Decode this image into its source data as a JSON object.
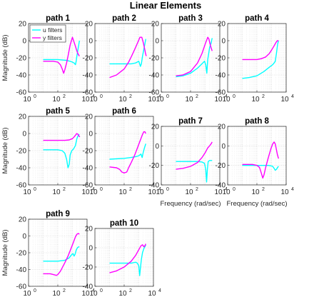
{
  "figure_title": "Linear Elements",
  "colors": {
    "u": "#00ffff",
    "y": "#ff00ff"
  },
  "legend": [
    "u filters",
    "y filters"
  ],
  "ytick_labels": [
    "20",
    "0",
    "-20",
    "-40",
    "-60"
  ],
  "ytick_labels_short": [
    "20",
    "0",
    "-20",
    "-40"
  ],
  "xtick_labels": [
    {
      "base": "10",
      "exp": "0"
    },
    {
      "base": "10",
      "exp": "2"
    },
    {
      "base": "10",
      "exp": "4"
    }
  ],
  "ylabel": "Magnitude (dB)",
  "xlabel": "Frequency (rad/sec)",
  "chart_data": [
    {
      "type": "line",
      "title": "path 1",
      "xscale": "log",
      "xlim": [
        1,
        10000
      ],
      "ylim": [
        -60,
        20
      ],
      "legend": "top-left",
      "series": [
        {
          "name": "u filters",
          "x": [
            10,
            50,
            100,
            200,
            400,
            700,
            1000,
            1300,
            1600,
            1800,
            2000,
            2500,
            3000
          ],
          "y": [
            -22,
            -22,
            -22,
            -22.5,
            -23,
            -24,
            -25,
            -26,
            -28,
            -24,
            -18,
            -8,
            0
          ]
        },
        {
          "name": "y filters",
          "x": [
            10,
            50,
            100,
            150,
            200,
            250,
            300,
            400,
            500,
            700,
            1000,
            1200,
            1500,
            2000,
            2500,
            3000
          ],
          "y": [
            -24,
            -24,
            -25,
            -28,
            -33,
            -38,
            -34,
            -26,
            -18,
            -5,
            4,
            0,
            -5,
            -12,
            -16,
            -18
          ]
        }
      ]
    },
    {
      "type": "line",
      "title": "path 2",
      "xscale": "log",
      "xlim": [
        1,
        10000
      ],
      "ylim": [
        -60,
        20
      ],
      "series": [
        {
          "name": "u filters",
          "x": [
            10,
            100,
            300,
            600,
            1000,
            1300,
            1500,
            1800,
            2500,
            3000
          ],
          "y": [
            -27,
            -27,
            -27,
            -26,
            -24,
            -30,
            -27,
            -18,
            -5,
            2
          ]
        },
        {
          "name": "y filters",
          "x": [
            10,
            30,
            100,
            200,
            300,
            500,
            800,
            1200,
            1600,
            2000,
            2400,
            2800,
            3200
          ],
          "y": [
            -43,
            -40,
            -33,
            -25,
            -19,
            -11,
            -3,
            4,
            4,
            -2,
            -8,
            -14,
            -18
          ]
        }
      ]
    },
    {
      "type": "line",
      "title": "path 3",
      "xscale": "log",
      "xlim": [
        1,
        10000
      ],
      "ylim": [
        -60,
        20
      ],
      "series": [
        {
          "name": "u filters",
          "x": [
            10,
            30,
            100,
            300,
            600,
            900,
            1100,
            1300,
            1500,
            2000,
            2500,
            3000
          ],
          "y": [
            -42,
            -41,
            -38,
            -32,
            -27,
            -24,
            -28,
            -38,
            -22,
            -8,
            -3,
            3
          ]
        },
        {
          "name": "y filters",
          "x": [
            10,
            30,
            100,
            300,
            600,
            1000,
            1500,
            1800,
            2100,
            2500,
            3000
          ],
          "y": [
            -41,
            -40,
            -36,
            -26,
            -15,
            -4,
            4,
            2,
            -3,
            -8,
            -12
          ]
        }
      ]
    },
    {
      "type": "line",
      "title": "path 4",
      "xscale": "log",
      "xlim": [
        1,
        10000
      ],
      "ylim": [
        -60,
        20
      ],
      "series": [
        {
          "name": "u filters",
          "x": [
            10,
            30,
            100,
            300,
            700,
            1200,
            1500,
            1800,
            2200,
            2600,
            3000
          ],
          "y": [
            -44,
            -43,
            -41,
            -36,
            -31,
            -28,
            -26,
            -24,
            -14,
            -4,
            0
          ]
        },
        {
          "name": "y filters",
          "x": [
            10,
            50,
            100,
            200,
            400,
            700,
            1000,
            1500,
            2000,
            2500,
            3000
          ],
          "y": [
            -22,
            -22,
            -22,
            -21,
            -19,
            -15,
            -11,
            -6,
            -2,
            0,
            0
          ]
        }
      ]
    },
    {
      "type": "line",
      "title": "path 5",
      "xscale": "log",
      "xlim": [
        1,
        10000
      ],
      "ylim": [
        -60,
        20
      ],
      "series": [
        {
          "name": "u filters",
          "x": [
            10,
            100,
            200,
            300,
            400,
            500,
            600,
            700,
            900,
            1200,
            1600,
            2000,
            2500,
            3000
          ],
          "y": [
            -19,
            -19,
            -20,
            -23,
            -30,
            -40,
            -36,
            -25,
            -20,
            -18,
            -14,
            -6,
            -2,
            -1
          ]
        },
        {
          "name": "y filters",
          "x": [
            10,
            100,
            300,
            600,
            1000,
            1300,
            1600,
            2000,
            2400,
            2800,
            3200
          ],
          "y": [
            -8,
            -8,
            -8,
            -7.5,
            -6,
            -4,
            -2,
            0,
            -1,
            -3,
            -4
          ]
        }
      ]
    },
    {
      "type": "line",
      "title": "path 6",
      "xscale": "log",
      "xlim": [
        1,
        10000
      ],
      "ylim": [
        -60,
        20
      ],
      "series": [
        {
          "name": "u filters",
          "x": [
            10,
            100,
            300,
            600,
            1000,
            1400,
            1700,
            2000,
            2500,
            3000
          ],
          "y": [
            -30,
            -29,
            -28,
            -27,
            -26,
            -24,
            -28,
            -22,
            -16,
            -12
          ]
        },
        {
          "name": "y filters",
          "x": [
            10,
            30,
            50,
            70,
            100,
            150,
            200,
            300,
            500,
            800,
            1200,
            1800,
            2200,
            2600,
            3000
          ],
          "y": [
            -39,
            -40,
            -42,
            -45,
            -46,
            -45,
            -40,
            -34,
            -26,
            -17,
            -9,
            -1,
            2,
            2,
            0
          ]
        }
      ]
    },
    {
      "type": "line",
      "title": "path 7",
      "xscale": "log",
      "xlim": [
        1,
        10000
      ],
      "ylim": [
        -40,
        20
      ],
      "series": [
        {
          "name": "u filters",
          "x": [
            10,
            100,
            300,
            600,
            900,
            1100,
            1250,
            1400,
            1600,
            2000,
            2500,
            3000
          ],
          "y": [
            -16,
            -16,
            -16,
            -16.5,
            -18,
            -24,
            -37,
            -25,
            -16,
            -15,
            -15,
            -15
          ]
        },
        {
          "name": "y filters",
          "x": [
            10,
            30,
            100,
            300,
            600,
            1000,
            1500,
            2000,
            2500,
            3000
          ],
          "y": [
            -24,
            -23,
            -21,
            -17,
            -12,
            -7,
            -2,
            0,
            2,
            4
          ]
        }
      ]
    },
    {
      "type": "line",
      "title": "path 8",
      "xscale": "log",
      "xlim": [
        1,
        10000
      ],
      "ylim": [
        -40,
        20
      ],
      "series": [
        {
          "name": "u filters",
          "x": [
            10,
            100,
            300,
            600,
            900,
            1200,
            1500,
            1800,
            2200,
            2600,
            3000
          ],
          "y": [
            -20,
            -20,
            -20,
            -20,
            -20.5,
            -21,
            -23,
            -25,
            -24,
            -22,
            -21
          ]
        },
        {
          "name": "y filters",
          "x": [
            10,
            50,
            100,
            150,
            200,
            250,
            300,
            400,
            600,
            900,
            1200,
            1500,
            1800,
            2100,
            2500,
            3000
          ],
          "y": [
            -19,
            -19,
            -20,
            -22,
            -28,
            -33,
            -30,
            -22,
            -12,
            -3,
            2,
            4,
            2,
            -3,
            -9,
            -13
          ]
        }
      ]
    },
    {
      "type": "line",
      "title": "path 9",
      "xscale": "log",
      "xlim": [
        1,
        10000
      ],
      "ylim": [
        -60,
        20
      ],
      "series": [
        {
          "name": "u filters",
          "x": [
            10,
            100,
            300,
            600,
            900,
            1100,
            1300,
            1500,
            1800,
            2200,
            2600,
            3000
          ],
          "y": [
            -30,
            -30,
            -29,
            -26,
            -22,
            -21,
            -24,
            -22,
            -17,
            -14,
            -13,
            -13
          ]
        },
        {
          "name": "y filters",
          "x": [
            10,
            30,
            50,
            80,
            100,
            150,
            200,
            300,
            500,
            800,
            1200,
            1600,
            2000,
            2500,
            3000
          ],
          "y": [
            -45,
            -45,
            -46,
            -47,
            -46,
            -42,
            -38,
            -32,
            -24,
            -15,
            -7,
            -1,
            2,
            3,
            2
          ]
        }
      ]
    },
    {
      "type": "line",
      "title": "path 10",
      "xscale": "log",
      "xlim": [
        1,
        10000
      ],
      "ylim": [
        -40,
        20
      ],
      "series": [
        {
          "name": "u filters",
          "x": [
            10,
            100,
            300,
            600,
            800,
            1000,
            1150,
            1300,
            1500,
            1800,
            2200,
            2600,
            3000
          ],
          "y": [
            -16,
            -16,
            -16,
            -15,
            -16,
            -19,
            -29,
            -21,
            -12,
            -5,
            -1,
            1,
            3
          ]
        },
        {
          "name": "y filters",
          "x": [
            10,
            30,
            100,
            300,
            600,
            1000,
            1400,
            1800,
            2200,
            2600,
            3000
          ],
          "y": [
            -26,
            -24,
            -20,
            -14,
            -8,
            -2,
            2,
            3,
            1,
            2,
            4
          ]
        }
      ]
    }
  ]
}
